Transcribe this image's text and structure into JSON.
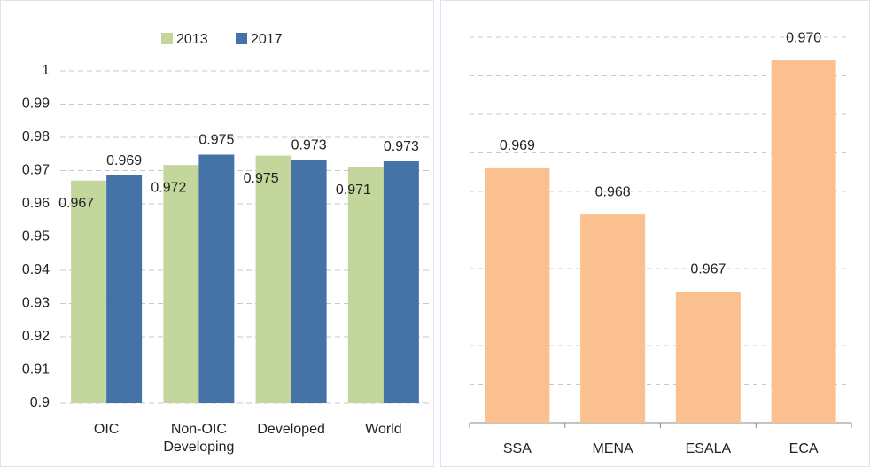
{
  "chart_data": [
    {
      "type": "bar",
      "categories": [
        "OIC",
        "Non-OIC Developing",
        "Developed",
        "World"
      ],
      "series": [
        {
          "name": "2013",
          "color": "#c3d69b",
          "values": [
            0.967,
            0.9717,
            0.9745,
            0.971
          ],
          "value_labels": [
            "0.967",
            "0.972",
            "0.975",
            "0.971"
          ]
        },
        {
          "name": "2017",
          "color": "#4572a7",
          "values": [
            0.9686,
            0.9748,
            0.9733,
            0.9728
          ],
          "value_labels": [
            "0.969",
            "0.975",
            "0.973",
            "0.973"
          ]
        }
      ],
      "ylim": [
        0.9,
        1
      ],
      "yticks": [
        0.9,
        0.91,
        0.92,
        0.93,
        0.94,
        0.95,
        0.96,
        0.97,
        0.98,
        0.99,
        1
      ],
      "grid": true,
      "legend": "top"
    },
    {
      "type": "bar",
      "categories": [
        "SSA",
        "MENA",
        "ESALA",
        "ECA"
      ],
      "values": [
        0.9686,
        0.968,
        0.967,
        0.97
      ],
      "value_labels": [
        "0.969",
        "0.968",
        "0.967",
        "0.970"
      ],
      "color": "#fac090",
      "ylim": [
        0.9653,
        0.9703
      ],
      "yticks": [
        0.9653,
        0.9658,
        0.9663,
        0.9668,
        0.9673,
        0.9678,
        0.9683,
        0.9688,
        0.9693,
        0.9698,
        0.9703
      ],
      "grid": true
    }
  ]
}
